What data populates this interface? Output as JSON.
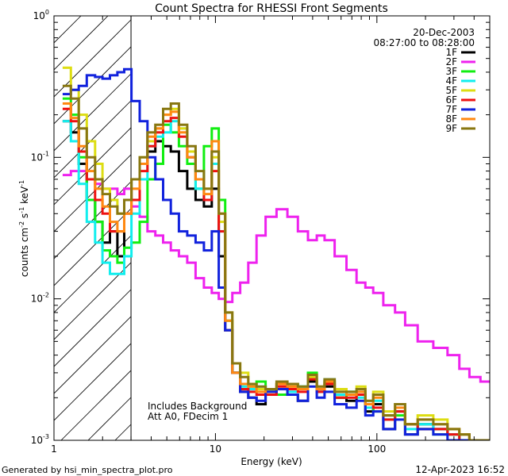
{
  "chart_data": {
    "type": "line",
    "title": "Count Spectra for RHESSI Front Segments",
    "xlabel": "Energy (keV)",
    "ylabel_parts": {
      "a": "counts cm",
      "b": "-2",
      "c": " s",
      "d": "-1",
      "e": " keV",
      "f": "-1"
    },
    "xscale": "log",
    "yscale": "log",
    "xlim": [
      1,
      500
    ],
    "ylim": [
      0.001,
      1
    ],
    "x_ticks": [
      {
        "value": 1,
        "label": "1"
      },
      {
        "value": 10,
        "label": "10"
      },
      {
        "value": 100,
        "label": "100"
      }
    ],
    "y_ticks": [
      {
        "value": 0.001,
        "base": "10",
        "exp": "-3"
      },
      {
        "value": 0.01,
        "base": "10",
        "exp": "-2"
      },
      {
        "value": 0.1,
        "base": "10",
        "exp": "-1"
      },
      {
        "value": 1,
        "base": "10",
        "exp": "0"
      }
    ],
    "date": "20-Dec-2003",
    "time_range": "08:27:00 to 08:28:00",
    "annotations": [
      "Includes Background",
      "Att A0, FDecim 1"
    ],
    "excluded_region_below_keV": 3,
    "footer_left": "Generated by hsi_min_spectra_plot.pro",
    "footer_right": "12-Apr-2023 16:52",
    "energies_keV": [
      1.2,
      1.35,
      1.5,
      1.7,
      1.9,
      2.1,
      2.35,
      2.6,
      2.85,
      3.2,
      3.6,
      4.0,
      4.5,
      5.0,
      5.6,
      6.3,
      7.1,
      8.0,
      9.0,
      10.0,
      11.0,
      12.0,
      13.5,
      15.0,
      17.0,
      19.0,
      22.0,
      26.0,
      30.0,
      35.0,
      40.0,
      45.0,
      50.0,
      60.0,
      70.0,
      80.0,
      90.0,
      100.0,
      120.0,
      140.0,
      160.0,
      200.0,
      250.0,
      300.0,
      350.0,
      400.0,
      480.0
    ],
    "series": [
      {
        "name": "1F",
        "color": "#000000",
        "values": [
          0.18,
          0.15,
          0.09,
          0.05,
          0.035,
          0.025,
          0.03,
          0.02,
          0.05,
          0.07,
          0.09,
          0.11,
          0.13,
          0.12,
          0.11,
          0.08,
          0.06,
          0.05,
          0.045,
          0.06,
          0.02,
          0.006,
          0.003,
          0.0022,
          0.002,
          0.0018,
          0.0022,
          0.0025,
          0.0021,
          0.0019,
          0.0026,
          0.0022,
          0.0024,
          0.002,
          0.0019,
          0.0021,
          0.0016,
          0.0018,
          0.0012,
          0.0016,
          0.0011,
          0.0013,
          0.0012,
          0.0011,
          0.0011,
          0.001,
          0.001
        ]
      },
      {
        "name": "2F",
        "color": "#ee22ee",
        "values": [
          0.075,
          0.08,
          0.08,
          0.07,
          0.065,
          0.06,
          0.06,
          0.055,
          0.06,
          0.045,
          0.038,
          0.03,
          0.028,
          0.025,
          0.022,
          0.02,
          0.018,
          0.014,
          0.012,
          0.011,
          0.01,
          0.0095,
          0.011,
          0.013,
          0.018,
          0.028,
          0.038,
          0.043,
          0.038,
          0.03,
          0.026,
          0.028,
          0.026,
          0.02,
          0.016,
          0.013,
          0.012,
          0.011,
          0.009,
          0.008,
          0.0065,
          0.005,
          0.0045,
          0.004,
          0.0032,
          0.0028,
          0.0026
        ]
      },
      {
        "name": "3F",
        "color": "#11ee11",
        "values": [
          0.26,
          0.2,
          0.1,
          0.05,
          0.035,
          0.022,
          0.02,
          0.018,
          0.023,
          0.025,
          0.035,
          0.07,
          0.09,
          0.17,
          0.15,
          0.12,
          0.09,
          0.06,
          0.12,
          0.16,
          0.05,
          0.007,
          0.003,
          0.0025,
          0.0024,
          0.0026,
          0.0022,
          0.0021,
          0.0025,
          0.0024,
          0.003,
          0.0023,
          0.0026,
          0.002,
          0.0022,
          0.0021,
          0.0018,
          0.0016,
          0.0015,
          0.0015,
          0.0013,
          0.0012,
          0.0011,
          0.0011,
          0.001,
          0.001,
          0.001
        ]
      },
      {
        "name": "4F",
        "color": "#11eeee",
        "values": [
          0.18,
          0.13,
          0.065,
          0.035,
          0.025,
          0.018,
          0.015,
          0.015,
          0.02,
          0.04,
          0.07,
          0.12,
          0.14,
          0.15,
          0.18,
          0.16,
          0.1,
          0.06,
          0.05,
          0.09,
          0.03,
          0.006,
          0.003,
          0.0024,
          0.0023,
          0.0024,
          0.0021,
          0.0023,
          0.0022,
          0.0024,
          0.0028,
          0.0022,
          0.0027,
          0.0021,
          0.0022,
          0.002,
          0.0017,
          0.0019,
          0.0014,
          0.0016,
          0.0012,
          0.0013,
          0.0012,
          0.0011,
          0.001,
          0.001,
          0.001
        ]
      },
      {
        "name": "5F",
        "color": "#dddd11",
        "values": [
          0.43,
          0.3,
          0.2,
          0.13,
          0.09,
          0.06,
          0.05,
          0.04,
          0.05,
          0.07,
          0.1,
          0.13,
          0.16,
          0.2,
          0.22,
          0.16,
          0.11,
          0.07,
          0.06,
          0.1,
          0.035,
          0.008,
          0.0035,
          0.003,
          0.0025,
          0.0023,
          0.0022,
          0.0025,
          0.0024,
          0.0023,
          0.0028,
          0.0024,
          0.0026,
          0.0023,
          0.0021,
          0.0024,
          0.0019,
          0.0022,
          0.0016,
          0.0018,
          0.0013,
          0.0015,
          0.0014,
          0.0012,
          0.0011,
          0.001,
          0.001
        ]
      },
      {
        "name": "6F",
        "color": "#ee1111",
        "values": [
          0.22,
          0.18,
          0.11,
          0.07,
          0.05,
          0.04,
          0.03,
          0.03,
          0.04,
          0.05,
          0.08,
          0.12,
          0.15,
          0.18,
          0.19,
          0.14,
          0.1,
          0.07,
          0.05,
          0.08,
          0.03,
          0.006,
          0.003,
          0.0023,
          0.0022,
          0.0021,
          0.0021,
          0.0024,
          0.0023,
          0.0022,
          0.0027,
          0.0022,
          0.0025,
          0.002,
          0.002,
          0.0021,
          0.0018,
          0.0017,
          0.0014,
          0.0016,
          0.0013,
          0.0012,
          0.0012,
          0.0011,
          0.001,
          0.001,
          0.001
        ]
      },
      {
        "name": "7F",
        "color": "#1122dd",
        "values": [
          0.28,
          0.3,
          0.32,
          0.38,
          0.37,
          0.36,
          0.38,
          0.4,
          0.42,
          0.25,
          0.18,
          0.1,
          0.07,
          0.05,
          0.04,
          0.03,
          0.028,
          0.025,
          0.022,
          0.03,
          0.012,
          0.006,
          0.003,
          0.0022,
          0.002,
          0.0019,
          0.0022,
          0.0023,
          0.0021,
          0.0019,
          0.0024,
          0.002,
          0.0022,
          0.0018,
          0.0017,
          0.0019,
          0.0015,
          0.0016,
          0.0012,
          0.0014,
          0.0011,
          0.0012,
          0.0011,
          0.001,
          0.001,
          0.001,
          0.001
        ]
      },
      {
        "name": "8F",
        "color": "#ff8811",
        "values": [
          0.24,
          0.19,
          0.12,
          0.08,
          0.06,
          0.045,
          0.035,
          0.03,
          0.04,
          0.06,
          0.09,
          0.14,
          0.16,
          0.2,
          0.21,
          0.15,
          0.1,
          0.07,
          0.055,
          0.13,
          0.04,
          0.007,
          0.003,
          0.0025,
          0.0024,
          0.0022,
          0.0023,
          0.0025,
          0.0024,
          0.0023,
          0.0029,
          0.0023,
          0.0026,
          0.0022,
          0.0021,
          0.0022,
          0.0018,
          0.002,
          0.0015,
          0.0017,
          0.0013,
          0.0014,
          0.0013,
          0.0012,
          0.0011,
          0.001,
          0.001
        ]
      },
      {
        "name": "9F",
        "color": "#887711",
        "values": [
          0.32,
          0.26,
          0.16,
          0.1,
          0.07,
          0.055,
          0.045,
          0.04,
          0.05,
          0.07,
          0.1,
          0.15,
          0.17,
          0.22,
          0.24,
          0.17,
          0.12,
          0.08,
          0.06,
          0.11,
          0.04,
          0.008,
          0.0035,
          0.0028,
          0.0025,
          0.0024,
          0.0023,
          0.0026,
          0.0025,
          0.0024,
          0.0029,
          0.0024,
          0.0027,
          0.0022,
          0.0022,
          0.0023,
          0.0019,
          0.0021,
          0.0015,
          0.0018,
          0.0013,
          0.0014,
          0.0013,
          0.0012,
          0.0011,
          0.001,
          0.001
        ]
      }
    ]
  }
}
